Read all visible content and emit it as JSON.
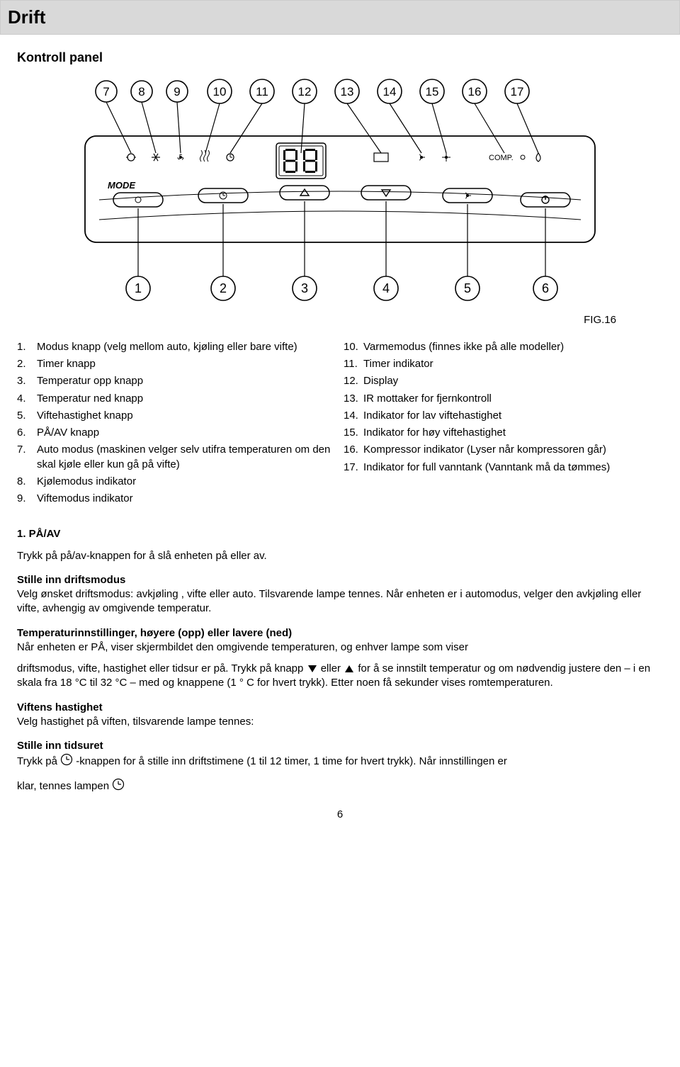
{
  "header": {
    "title": "Drift"
  },
  "subheading": "Kontroll panel",
  "figure": {
    "label": "FIG.16",
    "top_numbers": [
      "7",
      "8",
      "9",
      "10",
      "11",
      "12",
      "13",
      "14",
      "15",
      "16",
      "17"
    ],
    "bottom_numbers": [
      "1",
      "2",
      "3",
      "4",
      "5",
      "6"
    ],
    "display_value": "88",
    "mode_label": "MODE",
    "comp_label": "COMP.",
    "panel_bg": "#ffffff",
    "line_color": "#000000",
    "circle_fill": "#ffffff"
  },
  "left_list": [
    {
      "n": "1.",
      "t": "Modus knapp (velg mellom auto, kjøling eller bare vifte)"
    },
    {
      "n": "2.",
      "t": "Timer knapp"
    },
    {
      "n": "3.",
      "t": "Temperatur opp knapp"
    },
    {
      "n": "4.",
      "t": "Temperatur ned knapp"
    },
    {
      "n": "5.",
      "t": "Viftehastighet knapp"
    },
    {
      "n": "6.",
      "t": "PÅ/AV knapp"
    },
    {
      "n": "7.",
      "t": "Auto modus (maskinen velger selv utifra temperaturen om den skal kjøle eller kun gå på vifte)"
    },
    {
      "n": "8.",
      "t": "Kjølemodus indikator"
    },
    {
      "n": "9.",
      "t": "Viftemodus indikator"
    }
  ],
  "right_list": [
    {
      "n": "10.",
      "t": "Varmemodus (finnes ikke på alle modeller)"
    },
    {
      "n": "11.",
      "t": "Timer indikator"
    },
    {
      "n": "12.",
      "t": "Display"
    },
    {
      "n": "13.",
      "t": "IR mottaker for fjernkontroll"
    },
    {
      "n": "14.",
      "t": "Indikator for lav viftehastighet"
    },
    {
      "n": "15.",
      "t": "Indikator for høy viftehastighet"
    },
    {
      "n": "16.",
      "t": "Kompressor indikator (Lyser når kompressoren går)"
    },
    {
      "n": "17.",
      "t": "Indikator for full vanntank (Vanntank må da tømmes)"
    }
  ],
  "sections": {
    "s1_title": "1. PÅ/AV",
    "s1_p": "Trykk på på/av-knappen for å slå enheten på eller av.",
    "s2_title": "Stille inn driftsmodus",
    "s2_p": "Velg ønsket driftsmodus: avkjøling , vifte eller auto. Tilsvarende lampe tennes. Når enheten er i automodus, velger den avkjøling eller vifte, avhengig av omgivende temperatur.",
    "s3_title": "Temperaturinnstillinger, høyere (opp) eller lavere (ned)",
    "s3_p1": "Når enheten er PÅ, viser skjermbildet den omgivende temperaturen, og enhver lampe som viser",
    "s3_p2a": "driftsmodus, vifte, hastighet eller tidsur er på. Trykk på knapp ",
    "s3_p2b": " eller ",
    "s3_p2c": " for å se innstilt temperatur og om nødvendig justere den – i en skala fra 18 °C til 32 °C – med og knappene (1 ° C for hvert trykk). Etter noen få sekunder vises romtemperaturen.",
    "s4_title": "Viftens hastighet",
    "s4_p": "Velg hastighet på viften, tilsvarende lampe tennes:",
    "s5_title": "Stille inn tidsuret",
    "s5_p1a": "Trykk på ",
    "s5_p1b": "-knappen for å stille inn driftstimene (1 til 12 timer, 1 time for hvert trykk). Når innstillingen er",
    "s5_p2": "klar, tennes lampen "
  },
  "page_number": "6"
}
